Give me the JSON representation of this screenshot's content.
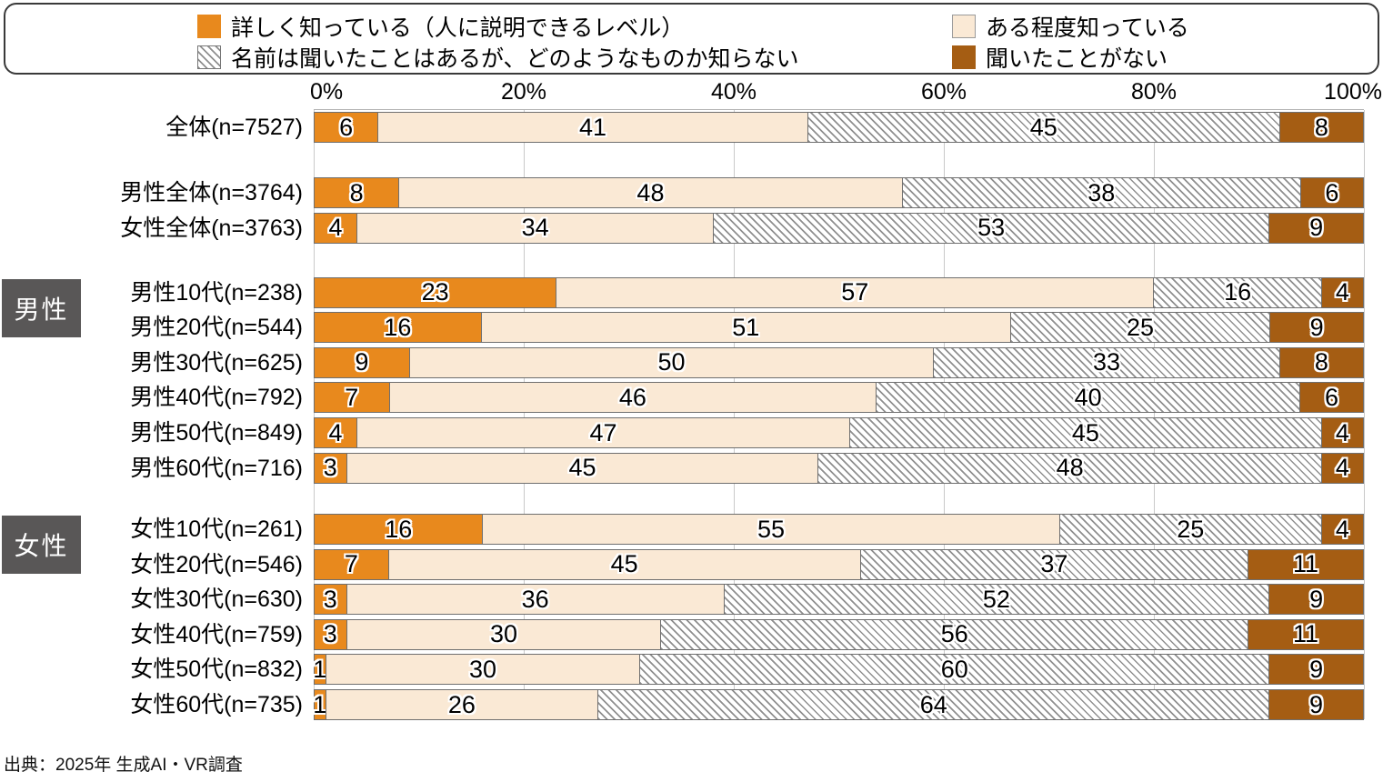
{
  "legend": {
    "items": [
      {
        "key": "detail",
        "label": "詳しく知っている（人に説明できるレベル）",
        "color": "#E8891D",
        "pattern": "solid"
      },
      {
        "key": "some",
        "label": "ある程度知っている",
        "color": "#FAE9D5",
        "pattern": "solid"
      },
      {
        "key": "name",
        "label": "名前は聞いたことはあるが、どのようなものか知らない",
        "color": "#8F8F8F",
        "pattern": "diagonal-hatch"
      },
      {
        "key": "never",
        "label": "聞いたことがない",
        "color": "#A55D13",
        "pattern": "solid"
      }
    ]
  },
  "chart_data": {
    "type": "bar",
    "stacked": true,
    "orientation": "horizontal",
    "unit": "%",
    "xlim": [
      0,
      100
    ],
    "x_ticks": [
      "0%",
      "20%",
      "40%",
      "60%",
      "80%",
      "100%"
    ],
    "grid": "vertical-20pct",
    "legend_position": "top-boxed",
    "series_names": [
      "詳しく知っている（人に説明できるレベル）",
      "ある程度知っている",
      "名前は聞いたことはあるが、どのようなものか知らない",
      "聞いたことがない"
    ],
    "series_colors": [
      "#E8891D",
      "#FAE9D5",
      "hatch:#8F8F8F",
      "#A55D13"
    ],
    "rows": [
      {
        "label": "全体(n=7527)",
        "values": [
          6,
          41,
          45,
          8
        ]
      },
      {
        "label": "男性全体(n=3764)",
        "values": [
          8,
          48,
          38,
          6
        ]
      },
      {
        "label": "女性全体(n=3763)",
        "values": [
          4,
          34,
          53,
          9
        ]
      },
      {
        "label": "男性10代(n=238)",
        "values": [
          23,
          57,
          16,
          4
        ]
      },
      {
        "label": "男性20代(n=544)",
        "values": [
          16,
          51,
          25,
          9
        ]
      },
      {
        "label": "男性30代(n=625)",
        "values": [
          9,
          50,
          33,
          8
        ]
      },
      {
        "label": "男性40代(n=792)",
        "values": [
          7,
          46,
          40,
          6
        ]
      },
      {
        "label": "男性50代(n=849)",
        "values": [
          4,
          47,
          45,
          4
        ]
      },
      {
        "label": "男性60代(n=716)",
        "values": [
          3,
          45,
          48,
          4
        ]
      },
      {
        "label": "女性10代(n=261)",
        "values": [
          16,
          55,
          25,
          4
        ]
      },
      {
        "label": "女性20代(n=546)",
        "values": [
          7,
          45,
          37,
          11
        ]
      },
      {
        "label": "女性30代(n=630)",
        "values": [
          3,
          36,
          52,
          9
        ]
      },
      {
        "label": "女性40代(n=759)",
        "values": [
          3,
          30,
          56,
          11
        ]
      },
      {
        "label": "女性50代(n=832)",
        "values": [
          1,
          30,
          60,
          9
        ]
      },
      {
        "label": "女性60代(n=735)",
        "values": [
          1,
          26,
          64,
          9
        ]
      }
    ],
    "groups": [
      {
        "label": "男性",
        "row_start": 3,
        "row_end": 8
      },
      {
        "label": "女性",
        "row_start": 9,
        "row_end": 14
      }
    ]
  },
  "source": "出典：2025年 生成AI・VR調査",
  "colors": {
    "accent_orange": "#E8891D",
    "cream": "#FAE9D5",
    "brown": "#A55D13",
    "hatch_line": "#8F8F8F",
    "bar_border": "#6F6F6F",
    "gridline": "#C9C9C9",
    "group_badge_bg": "#595757",
    "legend_border": "#3A3A3A"
  }
}
